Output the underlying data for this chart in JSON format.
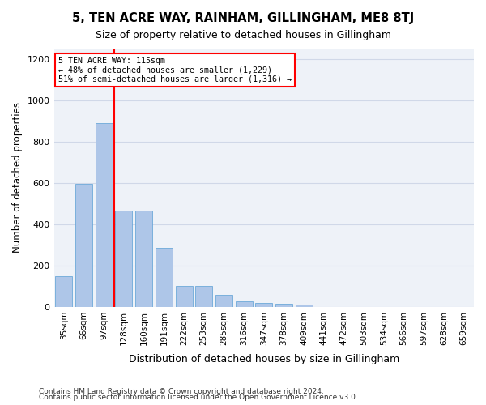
{
  "title": "5, TEN ACRE WAY, RAINHAM, GILLINGHAM, ME8 8TJ",
  "subtitle": "Size of property relative to detached houses in Gillingham",
  "xlabel": "Distribution of detached houses by size in Gillingham",
  "ylabel": "Number of detached properties",
  "categories": [
    "35sqm",
    "66sqm",
    "97sqm",
    "128sqm",
    "160sqm",
    "191sqm",
    "222sqm",
    "253sqm",
    "285sqm",
    "316sqm",
    "347sqm",
    "378sqm",
    "409sqm",
    "441sqm",
    "472sqm",
    "503sqm",
    "534sqm",
    "566sqm",
    "597sqm",
    "628sqm",
    "659sqm"
  ],
  "values": [
    150,
    595,
    890,
    465,
    465,
    285,
    100,
    100,
    58,
    28,
    20,
    15,
    10,
    0,
    0,
    0,
    0,
    0,
    0,
    0,
    0
  ],
  "bar_color": "#aec6e8",
  "bar_edge_color": "#5a9fd4",
  "reference_line_x": 3,
  "reference_line_label": "5 TEN ACRE WAY: 115sqm",
  "annotation_line1": "← 48% of detached houses are smaller (1,229)",
  "annotation_line2": "51% of semi-detached houses are larger (1,316) →",
  "ylim": [
    0,
    1250
  ],
  "yticks": [
    0,
    200,
    400,
    600,
    800,
    1000,
    1200
  ],
  "grid_color": "#d0d8e8",
  "bg_color": "#eef2f8",
  "footnote1": "Contains HM Land Registry data © Crown copyright and database right 2024.",
  "footnote2": "Contains public sector information licensed under the Open Government Licence v3.0."
}
